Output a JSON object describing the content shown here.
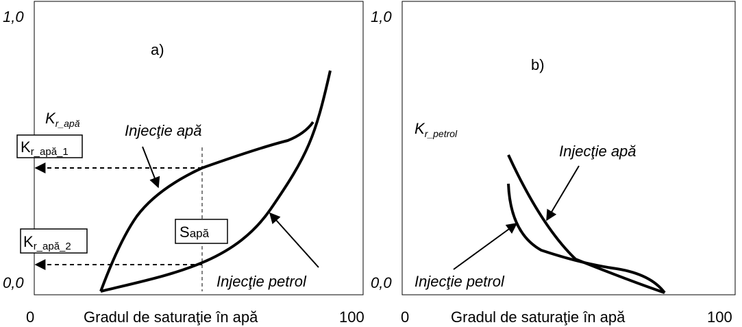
{
  "panel_a": {
    "y_top": "1,0",
    "y_bottom": "0,0",
    "x_left": "0",
    "x_right": "100",
    "x_label": "Gradul de saturaţie în apă",
    "tag": "a)",
    "axis_symbol": "K",
    "axis_subscript": "r_apă",
    "upper_curve": "Injecţie apă",
    "lower_curve": "Injecţie petrol",
    "level_1": {
      "symbol": "K",
      "subscript": "r_apă_1"
    },
    "level_2": {
      "symbol": "K",
      "subscript": "r_apă_2"
    },
    "saturation": {
      "symbol": "S",
      "subscript": "apă"
    }
  },
  "panel_b": {
    "y_top": "1,0",
    "y_bottom": "0,0",
    "x_left": "0",
    "x_right": "100",
    "x_label": "Gradul de saturaţie în apă",
    "tag": "b)",
    "axis_symbol": "K",
    "axis_subscript": "r_petrol",
    "curve_1": "Injecţie apă",
    "curve_2": "Injecţie petrol"
  }
}
